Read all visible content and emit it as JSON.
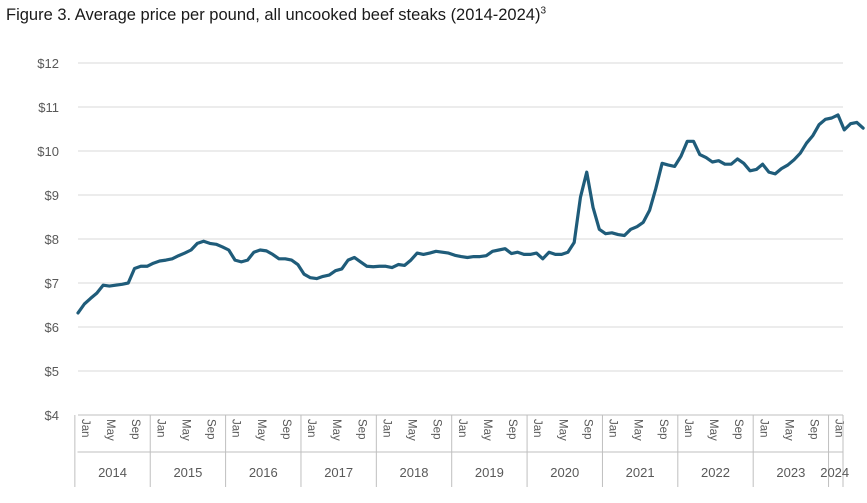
{
  "title": {
    "main": "Figure 3. Average price per pound, all uncooked beef steaks (2014-2024)",
    "superscript": "3"
  },
  "chart_data": {
    "type": "line",
    "title": "Figure 3. Average price per pound, all uncooked beef steaks (2014-2024)",
    "xlabel": "",
    "ylabel": "",
    "ylim": [
      4,
      12
    ],
    "y_ticks": [
      "$4",
      "$5",
      "$6",
      "$7",
      "$8",
      "$9",
      "$10",
      "$11",
      "$12"
    ],
    "y_tick_values": [
      4,
      5,
      6,
      7,
      8,
      9,
      10,
      11,
      12
    ],
    "grid": "horizontal",
    "legend": "none",
    "color": "#1f5c7a",
    "x_month_ticks": [
      "Jan",
      "May",
      "Sep"
    ],
    "years": [
      "2014",
      "2015",
      "2016",
      "2017",
      "2018",
      "2019",
      "2020",
      "2021",
      "2022",
      "2023",
      "2024"
    ],
    "series": [
      {
        "start": "2014-01",
        "values": [
          6.32,
          6.52,
          6.65,
          6.77,
          6.95,
          6.93,
          6.95,
          6.97,
          7.0,
          7.33,
          7.38,
          7.38,
          7.45,
          7.5,
          7.52,
          7.55,
          7.62,
          7.68,
          7.75,
          7.9,
          7.95,
          7.9,
          7.88,
          7.82,
          7.75,
          7.52,
          7.48,
          7.52,
          7.7,
          7.75,
          7.73,
          7.65,
          7.55,
          7.55,
          7.52,
          7.42,
          7.2,
          7.12,
          7.1,
          7.15,
          7.18,
          7.28,
          7.32,
          7.52,
          7.58,
          7.48,
          7.38,
          7.37,
          7.38,
          7.38,
          7.35,
          7.42,
          7.4,
          7.52,
          7.68,
          7.65,
          7.68,
          7.72,
          7.7,
          7.68,
          7.63,
          7.6,
          7.58,
          7.6,
          7.6,
          7.62,
          7.72,
          7.75,
          7.78,
          7.67,
          7.7,
          7.65,
          7.65,
          7.68,
          7.55,
          7.7,
          7.65,
          7.65,
          7.7,
          7.92,
          8.95,
          9.52,
          8.72,
          8.22,
          8.12,
          8.14,
          8.1,
          8.08,
          8.22,
          8.28,
          8.38,
          8.65,
          9.15,
          9.72,
          9.68,
          9.65,
          9.88,
          10.22,
          10.22,
          9.92,
          9.85,
          9.75,
          9.78,
          9.7,
          9.7,
          9.82,
          9.72,
          9.55,
          9.58,
          9.7,
          9.52,
          9.48,
          9.6,
          9.68,
          9.8,
          9.95,
          10.18,
          10.35,
          10.6,
          10.72,
          10.75,
          10.82,
          10.48,
          10.62,
          10.65,
          10.52
        ]
      }
    ]
  }
}
